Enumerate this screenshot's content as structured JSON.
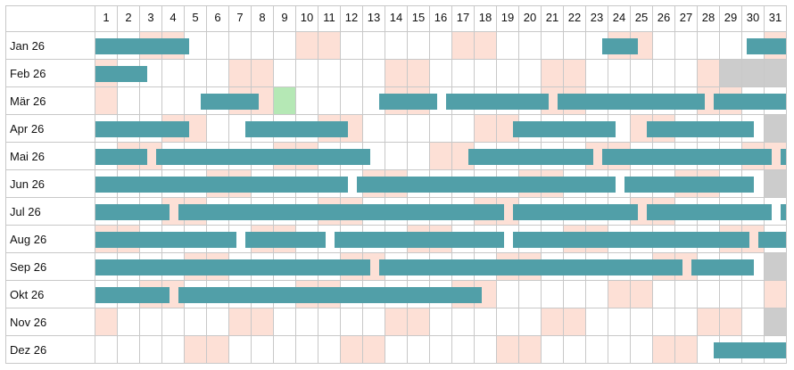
{
  "days": [
    "1",
    "2",
    "3",
    "4",
    "5",
    "6",
    "7",
    "8",
    "9",
    "10",
    "11",
    "12",
    "13",
    "14",
    "15",
    "16",
    "17",
    "18",
    "19",
    "20",
    "21",
    "22",
    "23",
    "24",
    "25",
    "26",
    "27",
    "28",
    "29",
    "30",
    "31"
  ],
  "months": [
    {
      "label": "Jan 26",
      "length": 31,
      "start_dow": 4
    },
    {
      "label": "Feb 26",
      "length": 28,
      "start_dow": 0
    },
    {
      "label": "Mär 26",
      "length": 31,
      "start_dow": 0,
      "highlight_day": 9
    },
    {
      "label": "Apr 26",
      "length": 30,
      "start_dow": 3
    },
    {
      "label": "Mai 26",
      "length": 31,
      "start_dow": 5
    },
    {
      "label": "Jun 26",
      "length": 30,
      "start_dow": 1
    },
    {
      "label": "Jul 26",
      "length": 31,
      "start_dow": 3
    },
    {
      "label": "Aug 26",
      "length": 31,
      "start_dow": 6
    },
    {
      "label": "Sep 26",
      "length": 30,
      "start_dow": 2
    },
    {
      "label": "Okt 26",
      "length": 31,
      "start_dow": 4
    },
    {
      "label": "Nov 26",
      "length": 30,
      "start_dow": 0
    },
    {
      "label": "Dez 26",
      "length": 31,
      "start_dow": 2
    }
  ],
  "bookings": [
    [
      {
        "start": 0.5,
        "end": 4.7
      },
      {
        "start": 23.2,
        "end": 24.8
      },
      {
        "start": 29.7,
        "end": 31.5
      }
    ],
    [
      {
        "start": 0.5,
        "end": 2.8
      }
    ],
    [
      {
        "start": 5.2,
        "end": 7.8
      },
      {
        "start": 13.2,
        "end": 15.8
      },
      {
        "start": 16.2,
        "end": 20.8
      },
      {
        "start": 21.2,
        "end": 27.8
      },
      {
        "start": 28.2,
        "end": 31.5
      }
    ],
    [
      {
        "start": 0.5,
        "end": 4.7
      },
      {
        "start": 7.2,
        "end": 11.8
      },
      {
        "start": 19.2,
        "end": 23.8
      },
      {
        "start": 25.2,
        "end": 30.0
      }
    ],
    [
      {
        "start": 0.5,
        "end": 2.8
      },
      {
        "start": 3.2,
        "end": 12.8
      },
      {
        "start": 17.2,
        "end": 22.8
      },
      {
        "start": 23.2,
        "end": 30.8
      },
      {
        "start": 31.2,
        "end": 31.5
      }
    ],
    [
      {
        "start": 0.5,
        "end": 11.8
      },
      {
        "start": 12.2,
        "end": 23.8
      },
      {
        "start": 24.2,
        "end": 30.0
      }
    ],
    [
      {
        "start": 0.5,
        "end": 3.8
      },
      {
        "start": 4.2,
        "end": 18.8
      },
      {
        "start": 19.2,
        "end": 24.8
      },
      {
        "start": 25.2,
        "end": 30.8
      },
      {
        "start": 31.2,
        "end": 31.5
      }
    ],
    [
      {
        "start": 0.5,
        "end": 6.8
      },
      {
        "start": 7.2,
        "end": 10.8
      },
      {
        "start": 11.2,
        "end": 18.8
      },
      {
        "start": 19.2,
        "end": 29.8
      },
      {
        "start": 30.2,
        "end": 31.5
      }
    ],
    [
      {
        "start": 0.5,
        "end": 12.8
      },
      {
        "start": 13.2,
        "end": 26.8
      },
      {
        "start": 27.2,
        "end": 30.0
      }
    ],
    [
      {
        "start": 0.5,
        "end": 3.8
      },
      {
        "start": 4.2,
        "end": 17.8
      }
    ],
    [],
    [
      {
        "start": 28.2,
        "end": 31.5
      }
    ]
  ],
  "colors": {
    "booking": "#519fa8",
    "weekend": "#fde0d6",
    "highlight": "#b5e8b5",
    "disabled": "#cccccc",
    "empty": "#ffffff",
    "grid": "#c8c8c8"
  }
}
